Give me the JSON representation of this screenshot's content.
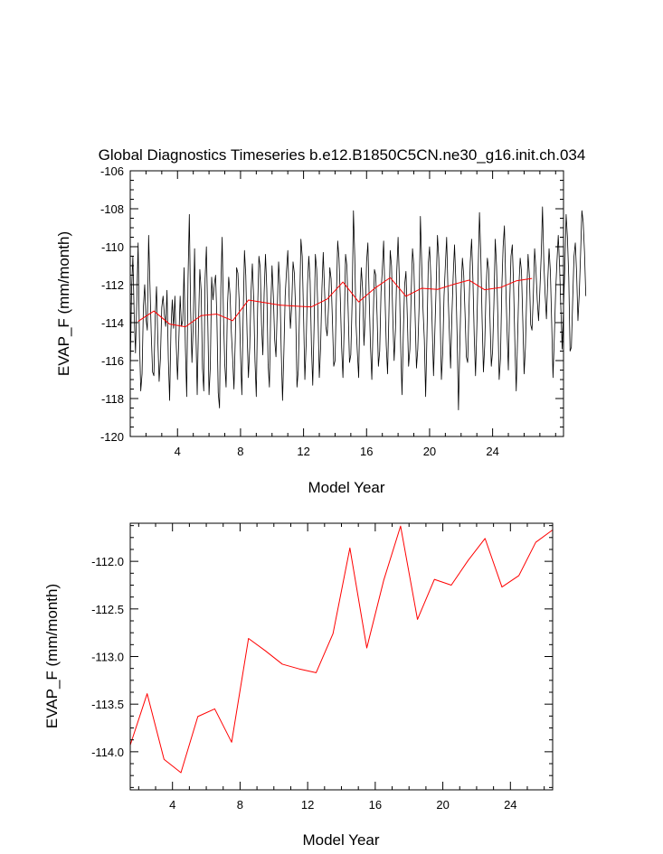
{
  "chart_data": [
    {
      "type": "line",
      "title": "Global Diagnostics Timeseries b.e12.B1850C5CN.ne30_g16.init.ch.034",
      "xlabel": "Model Year",
      "ylabel": "EVAP_F (mm/month)",
      "xlim": [
        1,
        28.5
      ],
      "ylim": [
        -120,
        -106
      ],
      "xticks": [
        4,
        8,
        12,
        16,
        20,
        24
      ],
      "xtick_labels": [
        "4",
        "8",
        "12",
        "16",
        "20",
        "24"
      ],
      "yticks": [
        -120,
        -118,
        -116,
        -114,
        -112,
        -110,
        -108,
        -106
      ],
      "ytick_labels": [
        "-120",
        "-118",
        "-116",
        "-114",
        "-112",
        "-110",
        "-108",
        "-106"
      ],
      "grid": false,
      "series": [
        {
          "color": "#000000",
          "x_start": 1.0,
          "x_step": 0.083333,
          "values": [
            -116.6,
            -112.3,
            -110.5,
            -113.6,
            -115.6,
            -112.8,
            -109.8,
            -114.8,
            -117.6,
            -116.7,
            -113.2,
            -112.0,
            -113.8,
            -114.4,
            -109.4,
            -112.0,
            -114.6,
            -116.6,
            -116.8,
            -113.7,
            -112.1,
            -114.9,
            -117.1,
            -115.9,
            -113.2,
            -112.6,
            -113.6,
            -114.2,
            -112.3,
            -115.9,
            -118.1,
            -114.4,
            -112.8,
            -114.3,
            -112.6,
            -115.1,
            -117.0,
            -114.9,
            -112.6,
            -114.2,
            -113.9,
            -111.1,
            -115.3,
            -117.9,
            -111.7,
            -108.3,
            -113.4,
            -116.1,
            -114.1,
            -110.1,
            -114.5,
            -117.8,
            -114.0,
            -111.2,
            -112.3,
            -116.4,
            -117.6,
            -111.7,
            -110.0,
            -113.7,
            -117.8,
            -116.3,
            -111.6,
            -112.8,
            -112.0,
            -111.5,
            -113.8,
            -117.7,
            -118.5,
            -112.2,
            -109.5,
            -113.6,
            -116.2,
            -117.4,
            -113.2,
            -111.6,
            -112.5,
            -114.5,
            -115.9,
            -117.5,
            -114.9,
            -111.1,
            -111.4,
            -112.9,
            -115.7,
            -117.8,
            -113.7,
            -110.2,
            -111.5,
            -114.6,
            -116.9,
            -115.3,
            -112.4,
            -110.9,
            -112.7,
            -116.0,
            -117.9,
            -113.3,
            -110.5,
            -111.1,
            -114.1,
            -115.7,
            -112.4,
            -110.4,
            -112.2,
            -116.2,
            -117.4,
            -113.3,
            -111.0,
            -112.6,
            -114.9,
            -115.8,
            -113.2,
            -110.8,
            -112.1,
            -115.5,
            -118.1,
            -115.6,
            -112.6,
            -111.3,
            -110.2,
            -112.6,
            -114.3,
            -113.1,
            -110.8,
            -111.4,
            -113.4,
            -117.4,
            -116.5,
            -113.2,
            -109.6,
            -110.5,
            -113.6,
            -117.0,
            -115.1,
            -112.0,
            -110.5,
            -111.8,
            -115.2,
            -117.3,
            -114.3,
            -110.4,
            -111.2,
            -113.6,
            -116.9,
            -115.3,
            -112.2,
            -110.3,
            -112.3,
            -114.2,
            -114.7,
            -113.2,
            -111.1,
            -111.7,
            -113.9,
            -116.3,
            -116.0,
            -112.7,
            -109.7,
            -110.6,
            -112.7,
            -115.3,
            -116.9,
            -114.1,
            -110.4,
            -111.0,
            -113.4,
            -116.1,
            -115.7,
            -112.9,
            -108.1,
            -110.5,
            -114.1,
            -115.6,
            -116.9,
            -112.8,
            -111.1,
            -112.3,
            -115.2,
            -113.7,
            -110.8,
            -109.8,
            -112.7,
            -115.3,
            -117.0,
            -114.0,
            -111.2,
            -111.5,
            -113.6,
            -116.3,
            -115.5,
            -112.4,
            -111.2,
            -109.7,
            -112.5,
            -115.2,
            -116.7,
            -113.6,
            -110.2,
            -111.0,
            -113.8,
            -116.0,
            -114.4,
            -111.3,
            -109.5,
            -111.8,
            -115.3,
            -117.8,
            -114.6,
            -112.0,
            -111.3,
            -113.6,
            -116.3,
            -115.4,
            -112.4,
            -110.1,
            -111.0,
            -113.7,
            -116.4,
            -115.4,
            -113.2,
            -108.4,
            -110.9,
            -113.3,
            -114.9,
            -117.9,
            -114.7,
            -110.9,
            -110.0,
            -111.7,
            -114.2,
            -116.8,
            -114.5,
            -112.1,
            -109.4,
            -110.6,
            -113.5,
            -117.0,
            -115.6,
            -112.6,
            -111.0,
            -109.5,
            -112.3,
            -114.4,
            -116.4,
            -113.6,
            -111.5,
            -109.9,
            -111.8,
            -114.8,
            -118.6,
            -115.3,
            -112.3,
            -110.6,
            -111.5,
            -113.5,
            -115.8,
            -116.1,
            -113.3,
            -110.8,
            -109.6,
            -111.7,
            -114.7,
            -116.8,
            -114.2,
            -111.2,
            -108.2,
            -110.4,
            -113.8,
            -116.6,
            -115.2,
            -112.3,
            -110.6,
            -111.2,
            -113.8,
            -116.3,
            -115.5,
            -113.0,
            -109.6,
            -111.0,
            -113.7,
            -117.0,
            -115.9,
            -112.2,
            -110.0,
            -108.9,
            -111.9,
            -114.4,
            -116.5,
            -113.0,
            -110.5,
            -109.9,
            -112.1,
            -115.2,
            -117.6,
            -114.9,
            -112.1,
            -110.6,
            -111.3,
            -113.9,
            -116.7,
            -115.3,
            -112.5,
            -110.4,
            -111.5,
            -114.1,
            -114.4,
            -112.6,
            -110.1,
            -111.2,
            -112.8,
            -113.9,
            -112.3,
            -110.5,
            -107.9,
            -110.8,
            -112.5,
            -113.8,
            -111.8,
            -110.1,
            -111.3,
            -114.0,
            -116.9,
            -114.8,
            -112.4,
            -110.8,
            -109.4,
            -111.0,
            -113.3,
            -115.4,
            -113.2,
            -111.1,
            -108.3,
            -109.5,
            -111.6,
            -115.5,
            -115.3,
            -112.8,
            -110.5,
            -109.8,
            -111.4,
            -113.9,
            -112.5,
            -110.4,
            -108.1,
            -108.7,
            -110.3,
            -112.6
          ]
        },
        {
          "color": "#ff0000",
          "x": [
            1.5,
            2.5,
            3.5,
            4.5,
            5.5,
            6.5,
            7.5,
            8.5,
            9.5,
            10.5,
            11.5,
            12.5,
            13.5,
            14.5,
            15.5,
            16.5,
            17.5,
            18.5,
            19.5,
            20.5,
            21.5,
            22.5,
            23.5,
            24.5,
            25.5,
            26.5
          ],
          "values": [
            -113.93,
            -113.39,
            -114.08,
            -114.22,
            -113.63,
            -113.55,
            -113.9,
            -112.81,
            -112.94,
            -113.08,
            -113.13,
            -113.17,
            -112.76,
            -111.86,
            -112.91,
            -112.2,
            -111.63,
            -112.61,
            -112.19,
            -112.25,
            -111.99,
            -111.76,
            -112.27,
            -112.15,
            -111.8,
            -111.67
          ]
        }
      ]
    },
    {
      "type": "line",
      "title": "",
      "xlabel": "Model Year",
      "ylabel": "EVAP_F (mm/month)",
      "xlim": [
        1.5,
        26.5
      ],
      "ylim": [
        -114.4,
        -111.6
      ],
      "xticks": [
        4,
        8,
        12,
        16,
        20,
        24
      ],
      "xtick_labels": [
        "4",
        "8",
        "12",
        "16",
        "20",
        "24"
      ],
      "yticks": [
        -114.0,
        -113.5,
        -113.0,
        -112.5,
        -112.0
      ],
      "ytick_labels": [
        "-114.0",
        "-113.5",
        "-113.0",
        "-112.5",
        "-112.0"
      ],
      "grid": false,
      "series": [
        {
          "color": "#ff0000",
          "x": [
            1.5,
            2.5,
            3.5,
            4.5,
            5.5,
            6.5,
            7.5,
            8.5,
            9.5,
            10.5,
            11.5,
            12.5,
            13.5,
            14.5,
            15.5,
            16.5,
            17.5,
            18.5,
            19.5,
            20.5,
            21.5,
            22.5,
            23.5,
            24.5,
            25.5,
            26.5
          ],
          "values": [
            -113.93,
            -113.39,
            -114.08,
            -114.22,
            -113.63,
            -113.55,
            -113.9,
            -112.81,
            -112.94,
            -113.08,
            -113.13,
            -113.17,
            -112.76,
            -111.86,
            -112.91,
            -112.2,
            -111.63,
            -112.61,
            -112.19,
            -112.25,
            -111.99,
            -111.76,
            -112.27,
            -112.15,
            -111.8,
            -111.67
          ]
        }
      ]
    }
  ]
}
